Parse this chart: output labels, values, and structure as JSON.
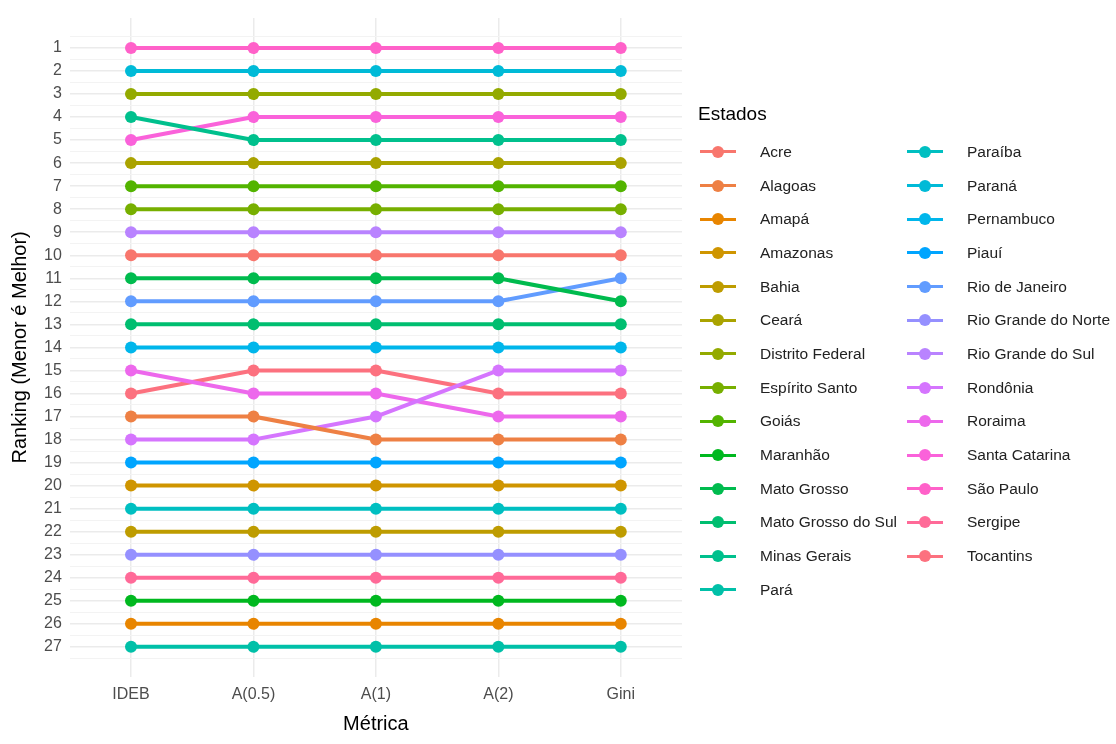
{
  "chart_data": {
    "type": "line",
    "xlabel": "Métrica",
    "ylabel": "Ranking (Menor é Melhor)",
    "legend_title": "Estados",
    "legend": "right",
    "grid": true,
    "marker": "circle",
    "line_style": "solid",
    "categories": [
      "IDEB",
      "A(0.5)",
      "A(1)",
      "A(2)",
      "Gini"
    ],
    "ylim": [
      28.3,
      -0.3
    ],
    "yticks": [
      {
        "value": 0.5,
        "label": null
      },
      1,
      {
        "value": 1.5,
        "label": null
      },
      2,
      {
        "value": 2.5,
        "label": null
      },
      3,
      {
        "value": 3.5,
        "label": null
      },
      4,
      {
        "value": 4.5,
        "label": null
      },
      5,
      {
        "value": 5.5,
        "label": null
      },
      6,
      {
        "value": 6.5,
        "label": null
      },
      7,
      {
        "value": 7.5,
        "label": null
      },
      8,
      {
        "value": 8.5,
        "label": null
      },
      9,
      {
        "value": 9.5,
        "label": null
      },
      10,
      {
        "value": 10.5,
        "label": null
      },
      11,
      {
        "value": 11.5,
        "label": null
      },
      12,
      {
        "value": 12.5,
        "label": null
      },
      13,
      {
        "value": 13.5,
        "label": null
      },
      14,
      {
        "value": 14.5,
        "label": null
      },
      15,
      {
        "value": 15.5,
        "label": null
      },
      16,
      {
        "value": 16.5,
        "label": null
      },
      17,
      {
        "value": 17.5,
        "label": null
      },
      18,
      {
        "value": 18.5,
        "label": null
      },
      19,
      {
        "value": 19.5,
        "label": null
      },
      20,
      {
        "value": 20.5,
        "label": null
      },
      21,
      {
        "value": 21.5,
        "label": null
      },
      22,
      {
        "value": 22.5,
        "label": null
      },
      23,
      {
        "value": 23.5,
        "label": null
      },
      24,
      {
        "value": 24.5,
        "label": null
      },
      25,
      {
        "value": 25.5,
        "label": null
      },
      26,
      {
        "value": 26.5,
        "label": null
      },
      27,
      {
        "value": 27.5,
        "label": null
      }
    ],
    "series": [
      {
        "name": "Acre",
        "color": "#f8766d",
        "values": [
          10,
          10,
          10,
          10,
          10
        ]
      },
      {
        "name": "Alagoas",
        "color": "#ee8044",
        "values": [
          17,
          17,
          18,
          18,
          18
        ]
      },
      {
        "name": "Amapá",
        "color": "#e88500",
        "values": [
          26,
          26,
          26,
          26,
          26
        ]
      },
      {
        "name": "Amazonas",
        "color": "#cf9500",
        "values": [
          20,
          20,
          20,
          20,
          20
        ]
      },
      {
        "name": "Bahia",
        "color": "#be9c00",
        "values": [
          22,
          22,
          22,
          22,
          22
        ]
      },
      {
        "name": "Ceará",
        "color": "#aaa300",
        "values": [
          6,
          6,
          6,
          6,
          6
        ]
      },
      {
        "name": "Distrito Federal",
        "color": "#93aa00",
        "values": [
          3,
          3,
          3,
          3,
          3
        ]
      },
      {
        "name": "Espírito Santo",
        "color": "#77af00",
        "values": [
          8,
          8,
          8,
          8,
          8
        ]
      },
      {
        "name": "Goiás",
        "color": "#53b400",
        "values": [
          7,
          7,
          7,
          7,
          7
        ]
      },
      {
        "name": "Maranhão",
        "color": "#00b81f",
        "values": [
          25,
          25,
          25,
          25,
          25
        ]
      },
      {
        "name": "Mato Grosso",
        "color": "#00bb4e",
        "values": [
          11,
          11,
          11,
          11,
          12
        ]
      },
      {
        "name": "Mato Grosso do Sul",
        "color": "#00be70",
        "values": [
          13,
          13,
          13,
          13,
          13
        ]
      },
      {
        "name": "Minas Gerais",
        "color": "#00c08d",
        "values": [
          4,
          5,
          5,
          5,
          5
        ]
      },
      {
        "name": "Pará",
        "color": "#00c0a8",
        "values": [
          27,
          27,
          27,
          27,
          27
        ]
      },
      {
        "name": "Paraíba",
        "color": "#00bfc1",
        "values": [
          21,
          21,
          21,
          21,
          21
        ]
      },
      {
        "name": "Paraná",
        "color": "#00bad7",
        "values": [
          2,
          2,
          2,
          2,
          2
        ]
      },
      {
        "name": "Pernambuco",
        "color": "#00b6eb",
        "values": [
          14,
          14,
          14,
          14,
          14
        ]
      },
      {
        "name": "Piauí",
        "color": "#00a5ff",
        "values": [
          19,
          19,
          19,
          19,
          19
        ]
      },
      {
        "name": "Rio de Janeiro",
        "color": "#619cff",
        "values": [
          12,
          12,
          12,
          12,
          11
        ]
      },
      {
        "name": "Rio Grande do Norte",
        "color": "#9590ff",
        "values": [
          23,
          23,
          23,
          23,
          23
        ]
      },
      {
        "name": "Rio Grande do Sul",
        "color": "#b983ff",
        "values": [
          9,
          9,
          9,
          9,
          9
        ]
      },
      {
        "name": "Rondônia",
        "color": "#d575fe",
        "values": [
          18,
          18,
          17,
          15,
          15
        ]
      },
      {
        "name": "Roraima",
        "color": "#ed68ec",
        "values": [
          15,
          16,
          16,
          17,
          17
        ]
      },
      {
        "name": "Santa Catarina",
        "color": "#fa62da",
        "values": [
          5,
          4,
          4,
          4,
          4
        ]
      },
      {
        "name": "São Paulo",
        "color": "#ff61c9",
        "values": [
          1,
          1,
          1,
          1,
          1
        ]
      },
      {
        "name": "Sergipe",
        "color": "#ff6a98",
        "values": [
          24,
          24,
          24,
          24,
          24
        ]
      },
      {
        "name": "Tocantins",
        "color": "#fc717f",
        "values": [
          16,
          15,
          15,
          16,
          16
        ]
      }
    ]
  }
}
